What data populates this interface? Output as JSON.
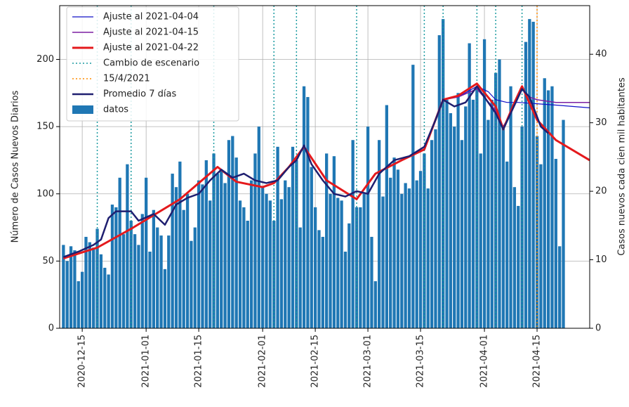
{
  "chart_data": {
    "type": "bar",
    "ylabel": "Número de Casos Nuevos Diarios",
    "y2label": "Casos nuevos cada cien mil habitantes",
    "xlim": [
      "2020-12-09",
      "2021-04-29"
    ],
    "xticks": [
      "2020-12-15",
      "2021-01-01",
      "2021-01-15",
      "2021-02-01",
      "2021-02-15",
      "2021-03-01",
      "2021-03-15",
      "2021-04-01",
      "2021-04-15"
    ],
    "ylim": [
      0,
      240
    ],
    "yticks": [
      0,
      50,
      100,
      150,
      200
    ],
    "y2lim": [
      0,
      47.1
    ],
    "y2ticks": [
      0,
      10,
      20,
      30,
      40
    ],
    "grid": true,
    "legend": "upper left",
    "series": [
      {
        "name": "Ajuste al 2021-04-04",
        "kind": "line",
        "color": "#1010c8",
        "width": 1.2,
        "x": [
          "2021-03-16",
          "2021-03-21",
          "2021-03-25",
          "2021-03-30",
          "2021-04-02",
          "2021-04-04",
          "2021-04-07",
          "2021-04-10",
          "2021-04-15",
          "2021-04-20",
          "2021-04-29"
        ],
        "values": [
          133,
          170,
          172,
          180,
          176,
          170,
          168,
          168,
          167,
          166,
          164
        ]
      },
      {
        "name": "Ajuste al 2021-04-15",
        "kind": "line",
        "color": "#7b1fa2",
        "width": 1.5,
        "x": [
          "2021-03-16",
          "2021-03-21",
          "2021-03-25",
          "2021-03-30",
          "2021-04-04",
          "2021-04-06",
          "2021-04-08",
          "2021-04-11",
          "2021-04-13",
          "2021-04-15",
          "2021-04-20",
          "2021-04-29"
        ],
        "values": [
          133,
          170,
          172,
          178,
          162,
          150,
          160,
          178,
          172,
          170,
          168,
          168
        ]
      },
      {
        "name": "Ajuste al 2021-04-22",
        "kind": "line",
        "color": "#e4191c",
        "width": 3,
        "x": [
          "2020-12-10",
          "2020-12-19",
          "2020-12-28",
          "2021-01-10",
          "2021-01-20",
          "2021-01-25",
          "2021-02-01",
          "2021-02-04",
          "2021-02-08",
          "2021-02-12",
          "2021-02-18",
          "2021-02-26",
          "2021-03-03",
          "2021-03-10",
          "2021-03-16",
          "2021-03-21",
          "2021-03-25",
          "2021-03-30",
          "2021-04-04",
          "2021-04-06",
          "2021-04-09",
          "2021-04-11",
          "2021-04-15",
          "2021-04-20",
          "2021-04-29"
        ],
        "values": [
          52,
          60,
          74,
          96,
          120,
          109,
          105,
          108,
          120,
          135,
          110,
          96,
          115,
          125,
          133,
          170,
          173,
          182,
          165,
          148,
          168,
          180,
          155,
          140,
          125
        ]
      },
      {
        "name": "Cambio de escenario",
        "kind": "vline",
        "color": "#1a9aa0",
        "style": "dotted",
        "x": [
          "2020-12-19",
          "2020-12-28",
          "2021-01-19",
          "2021-02-04",
          "2021-02-10",
          "2021-02-26",
          "2021-03-16",
          "2021-03-21",
          "2021-03-30",
          "2021-04-04",
          "2021-04-11"
        ]
      },
      {
        "name": "15/4/2021",
        "kind": "vline",
        "color": "#ff8c00",
        "style": "dotted",
        "x": [
          "2021-04-15"
        ]
      },
      {
        "name": "Promedio 7 días",
        "kind": "line",
        "color": "#1f1f70",
        "width": 2.5,
        "x": [
          "2020-12-10",
          "2020-12-14",
          "2020-12-18",
          "2020-12-20",
          "2020-12-22",
          "2020-12-24",
          "2020-12-28",
          "2020-12-30",
          "2021-01-03",
          "2021-01-06",
          "2021-01-09",
          "2021-01-12",
          "2021-01-15",
          "2021-01-18",
          "2021-01-21",
          "2021-01-24",
          "2021-01-27",
          "2021-01-30",
          "2021-02-02",
          "2021-02-05",
          "2021-02-08",
          "2021-02-10",
          "2021-02-12",
          "2021-02-14",
          "2021-02-17",
          "2021-02-20",
          "2021-02-23",
          "2021-02-26",
          "2021-03-01",
          "2021-03-04",
          "2021-03-08",
          "2021-03-12",
          "2021-03-16",
          "2021-03-19",
          "2021-03-21",
          "2021-03-24",
          "2021-03-27",
          "2021-03-30",
          "2021-04-01",
          "2021-04-04",
          "2021-04-06",
          "2021-04-08",
          "2021-04-11",
          "2021-04-13",
          "2021-04-16",
          "2021-04-18"
        ],
        "values": [
          53,
          57,
          62,
          66,
          82,
          87,
          87,
          80,
          85,
          77,
          92,
          97,
          100,
          110,
          118,
          112,
          115,
          110,
          108,
          110,
          120,
          125,
          136,
          122,
          110,
          100,
          98,
          102,
          100,
          115,
          125,
          128,
          135,
          155,
          170,
          165,
          168,
          180,
          172,
          160,
          148,
          160,
          178,
          172,
          150,
          145
        ]
      },
      {
        "name": "datos",
        "kind": "bar",
        "color": "#1f77b4",
        "start": "2020-12-10",
        "values": [
          62,
          50,
          61,
          58,
          35,
          42,
          68,
          64,
          60,
          74,
          55,
          45,
          40,
          92,
          90,
          112,
          70,
          122,
          80,
          70,
          62,
          85,
          112,
          57,
          88,
          75,
          69,
          44,
          69,
          115,
          105,
          124,
          88,
          100,
          65,
          75,
          110,
          107,
          125,
          95,
          130,
          115,
          118,
          108,
          140,
          143,
          127,
          95,
          90,
          80,
          110,
          130,
          150,
          105,
          100,
          95,
          80,
          135,
          96,
          110,
          105,
          135,
          125,
          75,
          180,
          172,
          120,
          90,
          73,
          68,
          130,
          100,
          128,
          97,
          95,
          57,
          78,
          140,
          90,
          90,
          100,
          150,
          68,
          35,
          140,
          98,
          166,
          112,
          127,
          118,
          100,
          108,
          104,
          196,
          110,
          117,
          130,
          104,
          140,
          148,
          218,
          230,
          170,
          160,
          150,
          175,
          140,
          165,
          212,
          170,
          180,
          130,
          215,
          155,
          170,
          190,
          200,
          150,
          124,
          180,
          105,
          91,
          150,
          213,
          230,
          228,
          143,
          122,
          186,
          177,
          180,
          126,
          61,
          155
        ]
      }
    ]
  }
}
